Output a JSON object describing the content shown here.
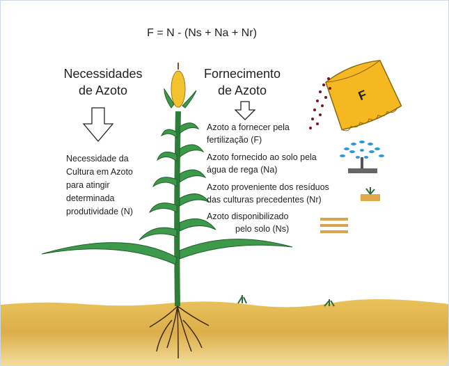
{
  "formula": "F = N - (Ns + Na + Nr)",
  "needs": {
    "title": [
      "Necessidades",
      "de Azoto"
    ],
    "description": [
      "Necessidade da",
      "Cultura em Azoto",
      "para atingir",
      "determinada",
      "produtividade (N)"
    ]
  },
  "supply": {
    "title": [
      "Fornecimento",
      "de Azoto"
    ],
    "items": [
      {
        "lines": [
          "Azoto a fornecer pela",
          "fertilização (F)"
        ]
      },
      {
        "lines": [
          "Azoto fornecido ao solo pela",
          "água de rega (Na)"
        ]
      },
      {
        "lines": [
          "Azoto proveniente dos resíduos",
          "das culturas precedentes (Nr)"
        ]
      },
      {
        "lines": [
          "Azoto disponibilizado",
          "pelo solo (Ns)"
        ]
      }
    ]
  },
  "bag_label": "F"
}
